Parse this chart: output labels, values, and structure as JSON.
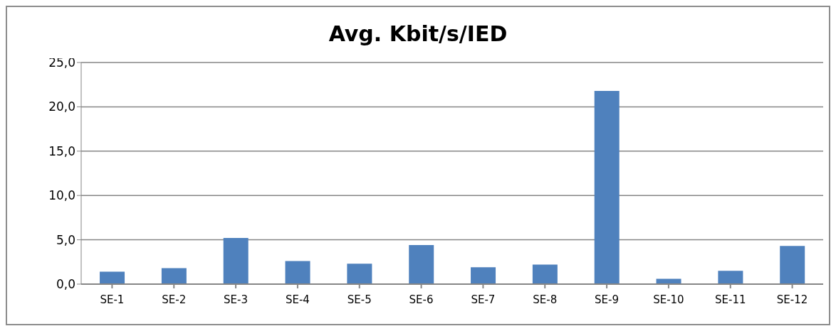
{
  "chart_data": {
    "type": "bar",
    "title": "Avg. Kbit/s/IED",
    "categories": [
      "SE-1",
      "SE-2",
      "SE-3",
      "SE-4",
      "SE-5",
      "SE-6",
      "SE-7",
      "SE-8",
      "SE-9",
      "SE-10",
      "SE-11",
      "SE-12"
    ],
    "values": [
      1.4,
      1.8,
      5.2,
      2.6,
      2.3,
      4.4,
      1.9,
      2.2,
      21.8,
      0.6,
      1.5,
      4.3
    ],
    "color": "#4f81bd",
    "ylim": [
      0,
      25
    ],
    "yticks": [
      {
        "value": 0,
        "label": "0,0"
      },
      {
        "value": 5,
        "label": "5,0"
      },
      {
        "value": 10,
        "label": "10,0"
      },
      {
        "value": 15,
        "label": "15,0"
      },
      {
        "value": 20,
        "label": "20,0"
      },
      {
        "value": 25,
        "label": "25,0"
      }
    ],
    "grid": "y"
  }
}
